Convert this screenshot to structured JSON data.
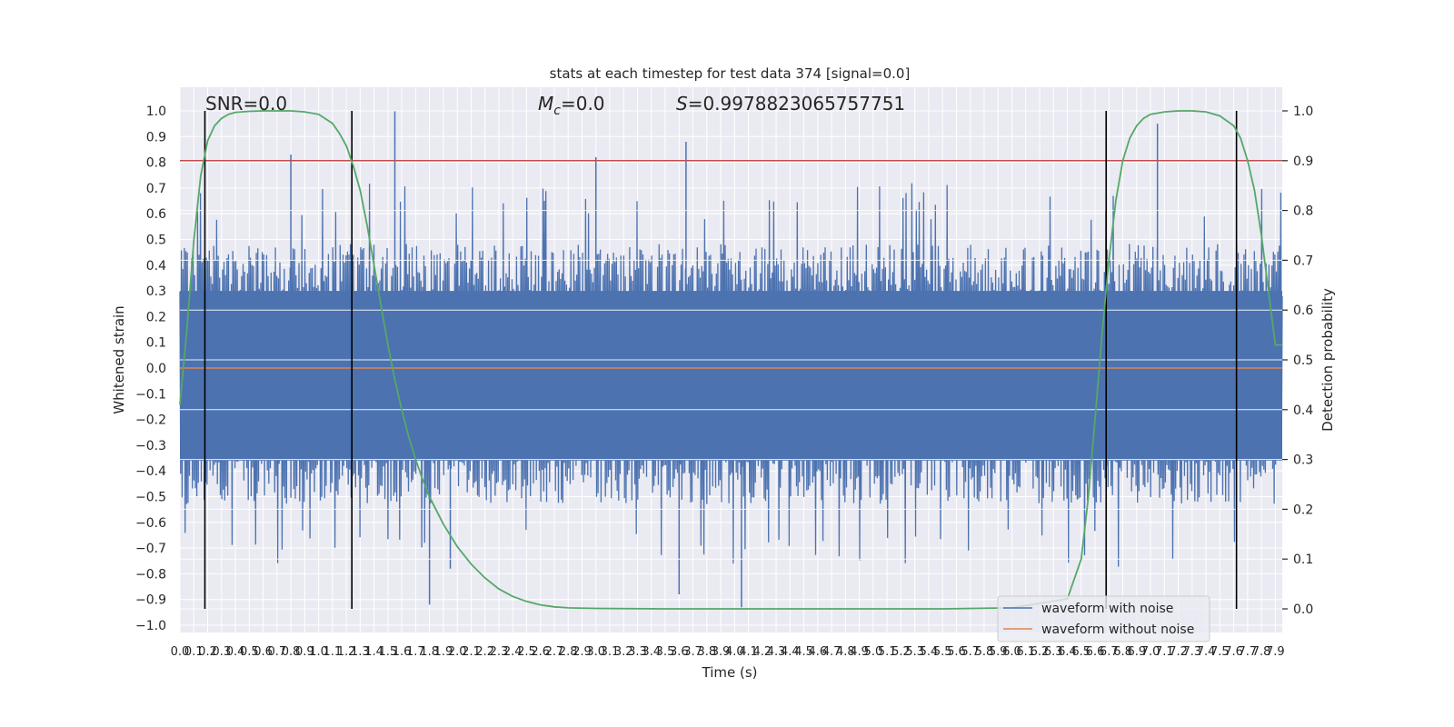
{
  "chart_data": {
    "type": "line",
    "title": "stats at each timestep for test data 374 [signal=0.0]",
    "xlabel": "Time (s)",
    "ylabel": "Whitened strain",
    "y2label": "Detection probability",
    "xlim": [
      0.0,
      7.95
    ],
    "ylim": [
      -1.05,
      1.05
    ],
    "y2lim": [
      -0.05,
      1.05
    ],
    "x_ticks": [
      "0.0",
      "0.1",
      "0.2",
      "0.3",
      "0.4",
      "0.5",
      "0.6",
      "0.7",
      "0.8",
      "0.9",
      "1.0",
      "1.1",
      "1.2",
      "1.3",
      "1.4",
      "1.5",
      "1.6",
      "1.7",
      "1.8",
      "1.9",
      "2.0",
      "2.1",
      "2.2",
      "2.3",
      "2.4",
      "2.5",
      "2.6",
      "2.7",
      "2.8",
      "2.9",
      "3.0",
      "3.1",
      "3.2",
      "3.3",
      "3.4",
      "3.5",
      "3.6",
      "3.7",
      "3.8",
      "3.9",
      "4.0",
      "4.1",
      "4.2",
      "4.3",
      "4.4",
      "4.5",
      "4.6",
      "4.7",
      "4.8",
      "4.9",
      "5.0",
      "5.1",
      "5.2",
      "5.3",
      "5.4",
      "5.5",
      "5.6",
      "5.7",
      "5.8",
      "5.9",
      "6.0",
      "6.1",
      "6.2",
      "6.3",
      "6.4",
      "6.5",
      "6.6",
      "6.7",
      "6.8",
      "6.9",
      "7.0",
      "7.1",
      "7.2",
      "7.3",
      "7.4",
      "7.5",
      "7.6",
      "7.7",
      "7.8",
      "7.9"
    ],
    "y_ticks": [
      "1.0",
      "0.9",
      "0.8",
      "0.7",
      "0.6",
      "0.5",
      "0.4",
      "0.3",
      "0.2",
      "0.1",
      "0.0",
      "−0.1",
      "−0.2",
      "−0.3",
      "−0.4",
      "−0.5",
      "−0.6",
      "−0.7",
      "−0.8",
      "−0.9",
      "−1.0"
    ],
    "y2_ticks": [
      "1.0",
      "0.9",
      "0.8",
      "0.7",
      "0.6",
      "0.5",
      "0.4",
      "0.3",
      "0.2",
      "0.1",
      "0.0"
    ],
    "annotations": {
      "snr": "SNR=0.0",
      "mc_symbol": "M",
      "mc_sub": "c",
      "mc_value": "=0.0",
      "s_symbol": "S",
      "s_value": "=0.9978823065757751"
    },
    "legend": {
      "placement": "lower-right",
      "entries": [
        {
          "label": "waveform with noise",
          "color": "#4c72b0"
        },
        {
          "label": "waveform without noise",
          "color": "#dd8452"
        }
      ]
    },
    "series": [
      {
        "name": "waveform with noise",
        "color": "#4c72b0",
        "noise_envelope": {
          "pos_typical": 0.42,
          "pos_extreme": 0.72,
          "neg_typical": -0.46,
          "neg_extreme": -0.78,
          "spikes": [
            {
              "x": 0.8,
              "y": 0.83
            },
            {
              "x": 1.55,
              "y": 1.0
            },
            {
              "x": 3.0,
              "y": 0.82
            },
            {
              "x": 3.65,
              "y": 0.88
            },
            {
              "x": 7.05,
              "y": 0.95
            },
            {
              "x": 1.8,
              "y": -0.92
            },
            {
              "x": 4.05,
              "y": -0.93
            },
            {
              "x": 3.6,
              "y": -0.88
            },
            {
              "x": 1.95,
              "y": -0.78
            }
          ]
        }
      },
      {
        "name": "waveform without noise",
        "color": "#dd8452",
        "x": [
          0.0,
          7.95
        ],
        "y": [
          0.0,
          0.0
        ]
      },
      {
        "name": "Detection probability",
        "axis": "right",
        "color": "#55a868",
        "x": [
          0.0,
          0.05,
          0.1,
          0.15,
          0.2,
          0.25,
          0.3,
          0.35,
          0.4,
          0.5,
          0.6,
          0.7,
          0.8,
          0.9,
          1.0,
          1.1,
          1.15,
          1.2,
          1.25,
          1.3,
          1.35,
          1.4,
          1.45,
          1.5,
          1.55,
          1.6,
          1.65,
          1.7,
          1.75,
          1.8,
          1.9,
          2.0,
          2.1,
          2.2,
          2.3,
          2.4,
          2.5,
          2.6,
          2.7,
          2.8,
          3.0,
          3.5,
          4.0,
          4.5,
          5.0,
          5.5,
          6.0,
          6.4,
          6.5,
          6.55,
          6.6,
          6.65,
          6.7,
          6.75,
          6.8,
          6.85,
          6.9,
          6.95,
          7.0,
          7.1,
          7.2,
          7.3,
          7.4,
          7.5,
          7.6,
          7.65,
          7.7,
          7.75,
          7.8,
          7.85,
          7.9,
          7.95
        ],
        "y": [
          0.41,
          0.56,
          0.74,
          0.87,
          0.94,
          0.97,
          0.985,
          0.993,
          0.997,
          0.999,
          1.0,
          1.0,
          1.0,
          0.998,
          0.993,
          0.975,
          0.955,
          0.93,
          0.89,
          0.84,
          0.77,
          0.69,
          0.61,
          0.53,
          0.46,
          0.4,
          0.345,
          0.3,
          0.26,
          0.225,
          0.17,
          0.125,
          0.09,
          0.062,
          0.04,
          0.025,
          0.015,
          0.008,
          0.004,
          0.002,
          0.001,
          0.0,
          0.0,
          0.0,
          0.0,
          0.0,
          0.002,
          0.02,
          0.1,
          0.22,
          0.38,
          0.55,
          0.7,
          0.82,
          0.9,
          0.945,
          0.97,
          0.985,
          0.993,
          0.998,
          1.0,
          1.0,
          0.998,
          0.99,
          0.97,
          0.945,
          0.9,
          0.84,
          0.75,
          0.64,
          0.53,
          0.53
        ]
      }
    ],
    "threshold_line": {
      "axis": "right",
      "value": 0.9,
      "color": "#c44e52"
    },
    "event_markers": {
      "color": "#000000",
      "x": [
        0.18,
        1.24,
        6.68,
        7.62
      ],
      "y_range": [
        0.0,
        1.0
      ]
    }
  }
}
